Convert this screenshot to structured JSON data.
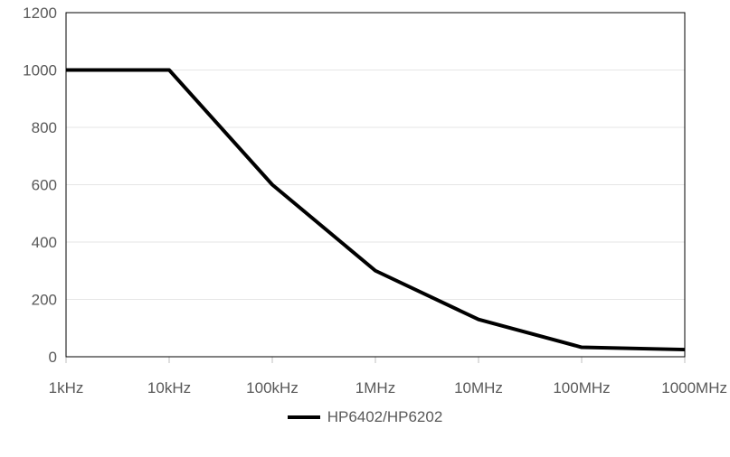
{
  "chart_data": {
    "type": "line",
    "title": "",
    "xlabel": "",
    "ylabel": "",
    "categories": [
      "1kHz",
      "10kHz",
      "100kHz",
      "1MHz",
      "10MHz",
      "100MHz",
      "1000MHz"
    ],
    "series": [
      {
        "name": "HP6402/HP6202",
        "values": [
          1000,
          1000,
          600,
          300,
          130,
          33,
          25
        ],
        "color": "#000000"
      }
    ],
    "ylim": [
      0,
      1200
    ],
    "yticks": [
      0,
      200,
      400,
      600,
      800,
      1000,
      1200
    ],
    "grid": "horizontal",
    "legend_position": "bottom"
  }
}
